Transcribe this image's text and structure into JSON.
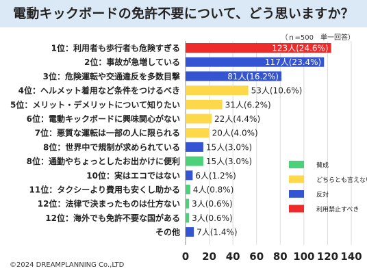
{
  "title": "電動キックボードの免許不要について、どう思いますか？",
  "note": "（ｎ=500　単一回答）",
  "copyright": "©2024 DREAMPLANNING Co.,LTD",
  "colors": {
    "賛成": "#4dd07a",
    "どちらとも言えない": "#fcd84a",
    "反対": "#3454d1",
    "利用禁止すべき": "#ee2b2b"
  },
  "chart_data": {
    "type": "bar",
    "orientation": "horizontal",
    "xlim": [
      0,
      140
    ],
    "xticks": [
      "0",
      "20",
      "40",
      "60",
      "80",
      "100",
      "120",
      "140"
    ],
    "legend": {
      "placement": "right",
      "entries": [
        {
          "label": "賛成",
          "color": "#4dd07a"
        },
        {
          "label": "どちらとも言えない",
          "color": "#fcd84a"
        },
        {
          "label": "反対",
          "color": "#3454d1"
        },
        {
          "label": "利用禁止すべき",
          "color": "#ee2b2b"
        }
      ]
    },
    "bars": [
      {
        "label": "1位：利用者も歩行者も危険すぎる",
        "value": 123,
        "value_label": "123人(24.6%)",
        "group": "利用禁止すべき"
      },
      {
        "label": "2位：事故が急増している",
        "value": 117,
        "value_label": "117人(23.4%)",
        "group": "反対"
      },
      {
        "label": "3位：危険運転や交通違反を多数目撃",
        "value": 81,
        "value_label": "81人(16.2%)",
        "group": "反対"
      },
      {
        "label": "4位：ヘルメット着用など条件をつけるべき",
        "value": 53,
        "value_label": "53人(10.6%)",
        "group": "どちらとも言えない"
      },
      {
        "label": "5位：メリット・デメリットについて知りたい",
        "value": 31,
        "value_label": "31人(6.2%)",
        "group": "どちらとも言えない"
      },
      {
        "label": "6位：電動キックボードに興味関心がない",
        "value": 22,
        "value_label": "22人(4.4%)",
        "group": "どちらとも言えない"
      },
      {
        "label": "7位：悪質な運転は一部の人に限られる",
        "value": 20,
        "value_label": "20人(4.0%)",
        "group": "どちらとも言えない"
      },
      {
        "label": "8位：世界中で規制が求められている",
        "value": 15,
        "value_label": "15人(3.0%)",
        "group": "反対"
      },
      {
        "label": "8位：通勤やちょっとしたお出かけに便利",
        "value": 15,
        "value_label": "15人(3.0%)",
        "group": "賛成"
      },
      {
        "label": "10位：実はエコではない",
        "value": 6,
        "value_label": "6人(1.2%)",
        "group": "反対"
      },
      {
        "label": "11位：タクシーより費用も安くし助かる",
        "value": 4,
        "value_label": "4人(0.8%)",
        "group": "賛成"
      },
      {
        "label": "12位：法律で決まったものは仕方ない",
        "value": 3,
        "value_label": "3人(0.6%)",
        "group": "賛成"
      },
      {
        "label": "12位：海外でも免許不要な国がある",
        "value": 3,
        "value_label": "3人(0.6%)",
        "group": "賛成"
      },
      {
        "label": "その他",
        "value": 7,
        "value_label": "7人(1.4%)",
        "group": "反対"
      }
    ]
  }
}
